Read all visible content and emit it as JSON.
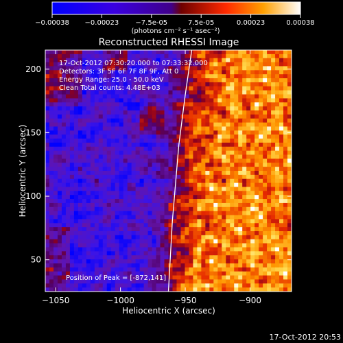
{
  "colorbar": {
    "ticks": [
      "-0.00038",
      "-0.00023",
      "-7.5e-05",
      "7.5e-05",
      "0.00023",
      "0.00038"
    ],
    "unit_label": "(photons cm⁻² s⁻¹ asec⁻²)",
    "range": [
      -0.00038,
      0.00038
    ]
  },
  "chart_data": {
    "type": "heatmap",
    "title": "Reconstructed RHESSI Image",
    "xlabel": "Heliocentric X (arcsec)",
    "ylabel": "Heliocentric Y (arcsec)",
    "xlim": [
      -1058,
      -868
    ],
    "ylim": [
      25,
      215
    ],
    "xticks": [
      {
        "value": -1050,
        "label": "−1050"
      },
      {
        "value": -1000,
        "label": "−1000"
      },
      {
        "value": -950,
        "label": "−950"
      },
      {
        "value": -900,
        "label": "−900"
      }
    ],
    "yticks": [
      {
        "value": 50,
        "label": "50"
      },
      {
        "value": 100,
        "label": "100"
      },
      {
        "value": 150,
        "label": "150"
      },
      {
        "value": 200,
        "label": "200"
      }
    ],
    "annotations": [
      "17-Oct-2012 07:30:20.000 to 07:33:32.000",
      "Detectors: 3F 5F 6F 7F 8F 9F, Att 0",
      "Energy Range: 25.0 - 50.0 keV",
      "Clean    Total counts: 4.48E+03"
    ],
    "peak_label": "Position of Peak = [-872,141]",
    "peak": [
      -872,
      141
    ],
    "limb_curve": [
      [
        -963,
        25
      ],
      [
        -960,
        80
      ],
      [
        -955,
        140
      ],
      [
        -950,
        180
      ],
      [
        -945,
        215
      ]
    ]
  },
  "footer": {
    "timestamp": "17-Oct-2012 20:53"
  },
  "colors": {
    "low": "#0000ff",
    "mid_low": "#6a00c8",
    "mid_high": "#ff3000",
    "high": "#ffffff"
  }
}
